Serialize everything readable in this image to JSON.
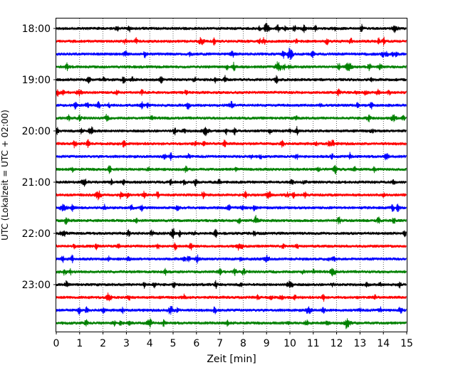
{
  "chart_data": {
    "type": "line",
    "description_kind": "helicorder",
    "xlabel": "Zeit  [min]",
    "ylabel": "UTC (Lokalzeit = UTC + 02:00)",
    "xlim": [
      0,
      15
    ],
    "x_ticks": [
      "0",
      "1",
      "2",
      "3",
      "4",
      "5",
      "6",
      "7",
      "8",
      "9",
      "10",
      "11",
      "12",
      "13",
      "14",
      "15"
    ],
    "y_tick_labels": [
      "18:00",
      "19:00",
      "20:00",
      "21:00",
      "22:00",
      "23:00"
    ],
    "trace_start_times": [
      "18:00",
      "18:15",
      "18:30",
      "18:45",
      "19:00",
      "19:15",
      "19:30",
      "19:45",
      "20:00",
      "20:15",
      "20:30",
      "20:45",
      "21:00",
      "21:15",
      "21:30",
      "21:45",
      "22:00",
      "22:15",
      "22:30",
      "22:45",
      "23:00",
      "23:15",
      "23:30",
      "23:45"
    ],
    "trace_minutes": 15,
    "trace_colors": [
      "#000000",
      "#ff0000",
      "#0000ff",
      "#008000"
    ],
    "grid": "vertical dotted at each minute",
    "events": [
      {
        "trace": 0,
        "minute": 9.0,
        "amp": 0.9
      },
      {
        "trace": 0,
        "minute": 14.5,
        "amp": 0.6
      },
      {
        "trace": 1,
        "minute": 6.2,
        "amp": 0.6
      },
      {
        "trace": 2,
        "minute": 10.0,
        "amp": 1.2
      },
      {
        "trace": 3,
        "minute": 9.5,
        "amp": 1.0
      },
      {
        "trace": 3,
        "minute": 12.5,
        "amp": 0.7
      },
      {
        "trace": 5,
        "minute": 1.0,
        "amp": 0.6
      },
      {
        "trace": 6,
        "minute": 7.5,
        "amp": 0.6
      },
      {
        "trace": 8,
        "minute": 1.5,
        "amp": 0.7
      },
      {
        "trace": 8,
        "minute": 6.4,
        "amp": 0.8
      },
      {
        "trace": 12,
        "minute": 1.2,
        "amp": 0.6
      },
      {
        "trace": 13,
        "minute": 1.8,
        "amp": 0.8
      },
      {
        "trace": 13,
        "minute": 9.1,
        "amp": 0.6
      },
      {
        "trace": 14,
        "minute": 0.3,
        "amp": 0.7
      },
      {
        "trace": 16,
        "minute": 5.0,
        "amp": 0.6
      },
      {
        "trace": 18,
        "minute": 9.0,
        "amp": 0.6
      },
      {
        "trace": 20,
        "minute": 10.0,
        "amp": 0.8
      },
      {
        "trace": 22,
        "minute": 4.9,
        "amp": 0.7
      },
      {
        "trace": 22,
        "minute": 10.8,
        "amp": 0.6
      },
      {
        "trace": 23,
        "minute": 4.0,
        "amp": 0.7
      },
      {
        "trace": 23,
        "minute": 12.5,
        "amp": 0.6
      }
    ]
  }
}
